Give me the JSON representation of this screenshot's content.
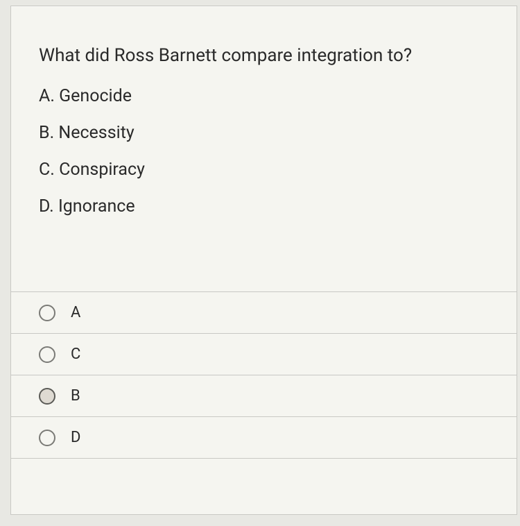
{
  "question": {
    "prompt": "What did Ross Barnett compare integration to?",
    "choices": [
      {
        "letter": "A",
        "text": "Genocide"
      },
      {
        "letter": "B",
        "text": "Necessity"
      },
      {
        "letter": "C",
        "text": "Conspiracy"
      },
      {
        "letter": "D",
        "text": "Ignorance"
      }
    ]
  },
  "answers": [
    {
      "label": "A",
      "darker": false
    },
    {
      "label": "C",
      "darker": false
    },
    {
      "label": "B",
      "darker": true
    },
    {
      "label": "D",
      "darker": false
    }
  ],
  "colors": {
    "page_bg": "#e8e8e3",
    "card_bg": "#f5f5f0",
    "border": "#c8c8c4",
    "text": "#2a2a2a",
    "radio_border": "#7a7a76",
    "radio_dark_border": "#5a5a56"
  },
  "typography": {
    "question_fontsize": 26,
    "choice_fontsize": 25,
    "answer_fontsize": 22,
    "font_family": "-apple-system"
  }
}
